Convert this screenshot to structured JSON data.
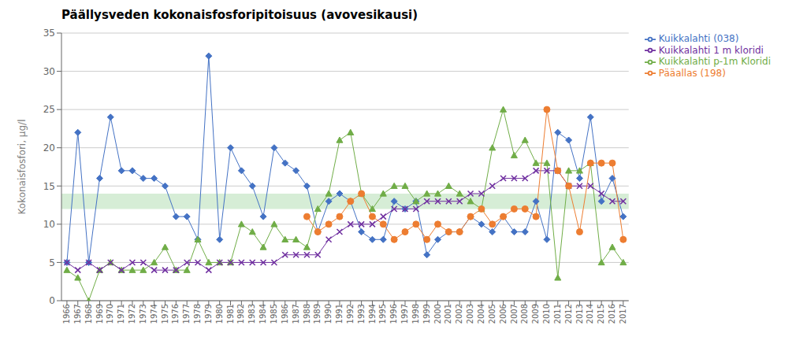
{
  "chart_data": {
    "type": "line",
    "title": "Päällysveden kokonaisfosforipitoisuus (avovesikausi)",
    "y_label": "Kokonaisfosfori, µg/l",
    "x": [
      1966,
      1967,
      1968,
      1969,
      1970,
      1971,
      1972,
      1973,
      1974,
      1975,
      1976,
      1977,
      1978,
      1979,
      1980,
      1981,
      1982,
      1983,
      1984,
      1985,
      1986,
      1987,
      1988,
      1989,
      1990,
      1991,
      1992,
      1993,
      1994,
      1995,
      1996,
      1997,
      1998,
      1999,
      2000,
      2001,
      2002,
      2003,
      2004,
      2005,
      2006,
      2007,
      2008,
      2009,
      2010,
      2011,
      2012,
      2013,
      2014,
      2015,
      2016,
      2017
    ],
    "xlim": [
      1965.5,
      2017.5
    ],
    "xticks": [
      1966,
      1967,
      1968,
      1969,
      1970,
      1971,
      1972,
      1973,
      1974,
      1975,
      1976,
      1977,
      1978,
      1979,
      1980,
      1981,
      1982,
      1983,
      1984,
      1985,
      1986,
      1987,
      1988,
      1989,
      1990,
      1991,
      1992,
      1993,
      1994,
      1995,
      1996,
      1997,
      1998,
      1999,
      2000,
      2001,
      2002,
      2003,
      2004,
      2005,
      2006,
      2007,
      2008,
      2009,
      2010,
      2011,
      2012,
      2013,
      2014,
      2015,
      2016,
      2017
    ],
    "ylim": [
      0,
      35
    ],
    "yticks": [
      0,
      5,
      10,
      15,
      20,
      25,
      30,
      35
    ],
    "grid": true,
    "legend": "right",
    "bands": [
      {
        "y1": 12,
        "y2": 14,
        "color": "#d6edd6"
      }
    ],
    "series": [
      {
        "name": "Kuikkalahti (038)",
        "color": "#4472C4",
        "marker": "diamond",
        "values": [
          5,
          22,
          5,
          16,
          24,
          17,
          17,
          16,
          16,
          15,
          11,
          11,
          8,
          32,
          8,
          20,
          17,
          15,
          11,
          20,
          18,
          17,
          15,
          9,
          13,
          14,
          13,
          9,
          8,
          8,
          13,
          12,
          13,
          6,
          8,
          9,
          9,
          11,
          10,
          9,
          11,
          9,
          9,
          13,
          8,
          22,
          21,
          16,
          24,
          13,
          16,
          11
        ]
      },
      {
        "name": "Kuikkalahti p-1m Kloridi",
        "color": "#70AD47",
        "marker": "triangle",
        "values": [
          4,
          3,
          0,
          4,
          5,
          4,
          4,
          4,
          5,
          7,
          4,
          4,
          8,
          5,
          5,
          5,
          10,
          9,
          7,
          10,
          8,
          8,
          7,
          12,
          14,
          21,
          22,
          14,
          12,
          14,
          15,
          15,
          13,
          14,
          14,
          15,
          14,
          13,
          12,
          20,
          25,
          19,
          21,
          18,
          18,
          3,
          17,
          17,
          18,
          5,
          7,
          5
        ]
      },
      {
        "name": "Kuikkalahti 1 m kloridi",
        "color": "#7030A0",
        "marker": "cross",
        "values": [
          5,
          4,
          5,
          4,
          5,
          4,
          5,
          5,
          4,
          4,
          4,
          5,
          5,
          4,
          5,
          5,
          5,
          5,
          5,
          5,
          6,
          6,
          6,
          6,
          8,
          9,
          10,
          10,
          10,
          11,
          12,
          12,
          12,
          13,
          13,
          13,
          13,
          14,
          14,
          15,
          16,
          16,
          16,
          17,
          17,
          17,
          15,
          15,
          15,
          14,
          13,
          13
        ]
      },
      {
        "name": "Pääallas (198)",
        "color": "#ED7D31",
        "marker": "circle",
        "values": [
          null,
          null,
          null,
          null,
          null,
          null,
          null,
          null,
          null,
          null,
          null,
          null,
          null,
          null,
          null,
          null,
          null,
          null,
          null,
          null,
          null,
          null,
          11,
          9,
          10,
          11,
          13,
          14,
          11,
          10,
          8,
          9,
          10,
          8,
          10,
          9,
          9,
          11,
          12,
          10,
          11,
          12,
          12,
          11,
          25,
          17,
          15,
          9,
          18,
          18,
          18,
          8
        ]
      }
    ]
  }
}
